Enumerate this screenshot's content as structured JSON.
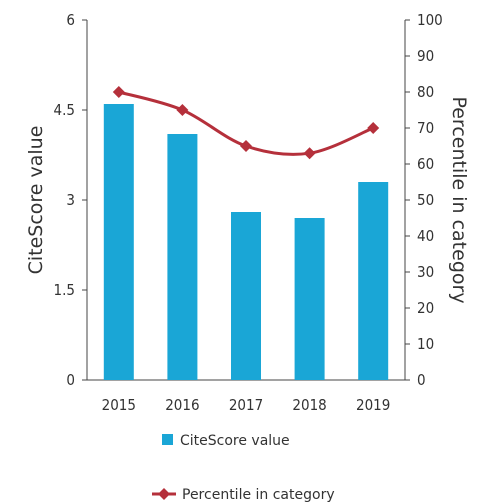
{
  "chart_data": {
    "type": "bar",
    "categories": [
      "2015",
      "2016",
      "2017",
      "2018",
      "2019"
    ],
    "series": [
      {
        "name": "CiteScore value",
        "type": "bar",
        "axis": "left",
        "values": [
          4.6,
          4.1,
          2.8,
          2.7,
          3.3
        ],
        "color": "#1aa6d6"
      },
      {
        "name": "Percentile in category",
        "type": "line",
        "axis": "right",
        "values": [
          80,
          75,
          65,
          63,
          70
        ],
        "color": "#b5303b"
      }
    ],
    "ylabel": "CiteScore value",
    "ylim": [
      0,
      6
    ],
    "yticks": [
      "0",
      "1.5",
      "3",
      "4.5",
      "6"
    ],
    "y2label": "Percentile in category",
    "y2lim": [
      0,
      100
    ],
    "y2ticks": [
      "0",
      "10",
      "20",
      "30",
      "40",
      "50",
      "60",
      "70",
      "80",
      "90",
      "100"
    ],
    "grid": false,
    "legend_position": "bottom"
  }
}
